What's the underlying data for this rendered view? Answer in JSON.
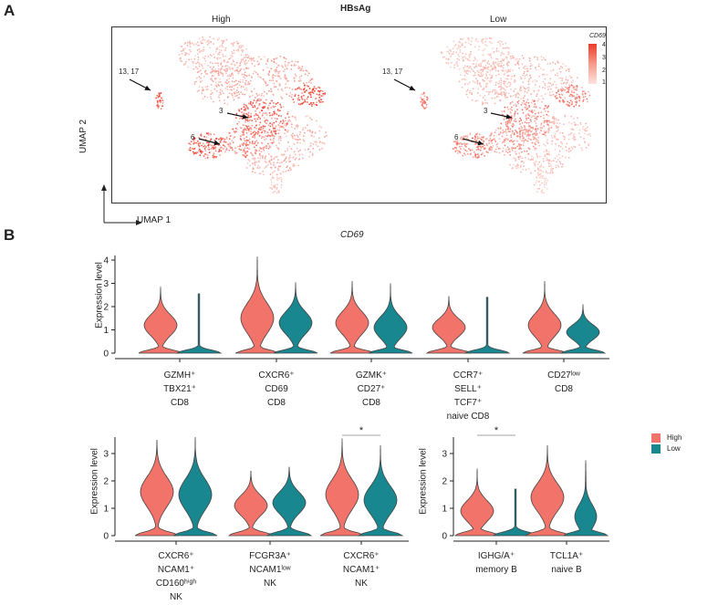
{
  "panel_a": {
    "letter": "A",
    "title": "HBsAg",
    "subtitle_left": "High",
    "subtitle_right": "Low",
    "axis_x": "UMAP 1",
    "axis_y": "UMAP 2",
    "cluster_labels": [
      "13, 17",
      "3",
      "6"
    ],
    "legend": {
      "title": "CD69",
      "ticks": [
        "4",
        "3",
        "2",
        "1"
      ],
      "color_high": "#ee3a28",
      "color_low": "#fbe3de"
    }
  },
  "panel_b": {
    "letter": "B",
    "title": "CD69",
    "ylabel": "Expression level",
    "legend": {
      "High": "High",
      "Low": "Low"
    },
    "colors": {
      "High": "#f2736a",
      "Low": "#19878f"
    },
    "significance": "*"
  },
  "chart_data": [
    {
      "type": "violin",
      "title": "CD69",
      "ylabel": "Expression level",
      "ylim": [
        0,
        4.2
      ],
      "yticks": [
        "0",
        "1",
        "2",
        "3",
        "4"
      ],
      "groups": [
        {
          "lines": [
            "GZMH⁺",
            "TBX21⁺",
            "CD8"
          ],
          "high_max": 2.85,
          "low_max": 2.55,
          "high_mode": 1.2,
          "low_mode": 0
        },
        {
          "lines": [
            "CXCR6⁺",
            "CD69",
            "CD8"
          ],
          "high_max": 4.15,
          "low_max": 3.05,
          "high_mode": 1.5,
          "low_mode": 1.3
        },
        {
          "lines": [
            "GZMK⁺",
            "CD27⁺",
            "CD8"
          ],
          "high_max": 3.1,
          "low_max": 3.0,
          "high_mode": 1.3,
          "low_mode": 1.1
        },
        {
          "lines": [
            "CCR7⁺",
            "SELL⁺",
            "TCF7⁺",
            "naive CD8"
          ],
          "high_max": 2.45,
          "low_max": 2.4,
          "high_mode": 1.1,
          "low_mode": 0
        },
        {
          "lines": [
            "CD27ˡᵒʷ",
            "CD8"
          ],
          "high_max": 3.1,
          "low_max": 2.1,
          "high_mode": 1.2,
          "low_mode": 0.9
        }
      ]
    },
    {
      "type": "violin",
      "title": "",
      "ylabel": "Expression level",
      "ylim": [
        0,
        3.6
      ],
      "yticks": [
        "0",
        "1",
        "2",
        "3"
      ],
      "groups": [
        {
          "lines": [
            "CXCR6⁺",
            "NCAM1⁺",
            "CD160ʰⁱᵍʰ",
            "NK"
          ],
          "high_max": 3.5,
          "low_max": 3.6,
          "high_mode": 1.6,
          "low_mode": 1.5
        },
        {
          "lines": [
            "FCGR3A⁺",
            "NCAM1ˡᵒʷ",
            "NK"
          ],
          "high_max": 2.35,
          "low_max": 2.5,
          "high_mode": 1.1,
          "low_mode": 1.2
        },
        {
          "lines": [
            "CXCR6⁺",
            "NCAM1⁺",
            "NK"
          ],
          "high_max": 3.55,
          "low_max": 3.3,
          "high_mode": 1.5,
          "low_mode": 1.3,
          "sig": "*"
        }
      ]
    },
    {
      "type": "violin",
      "title": "",
      "ylabel": "Expression level",
      "ylim": [
        0,
        3.6
      ],
      "yticks": [
        "0",
        "1",
        "2",
        "3"
      ],
      "groups": [
        {
          "lines": [
            "IGHG/A⁺",
            "memory B"
          ],
          "high_max": 2.45,
          "low_max": 1.7,
          "high_mode": 0.9,
          "low_mode": 0,
          "sig": "*"
        },
        {
          "lines": [
            "TCL1A⁺",
            "naive B"
          ],
          "high_max": 3.3,
          "low_max": 2.75,
          "high_mode": 1.4,
          "low_mode": 0.7
        }
      ]
    }
  ]
}
